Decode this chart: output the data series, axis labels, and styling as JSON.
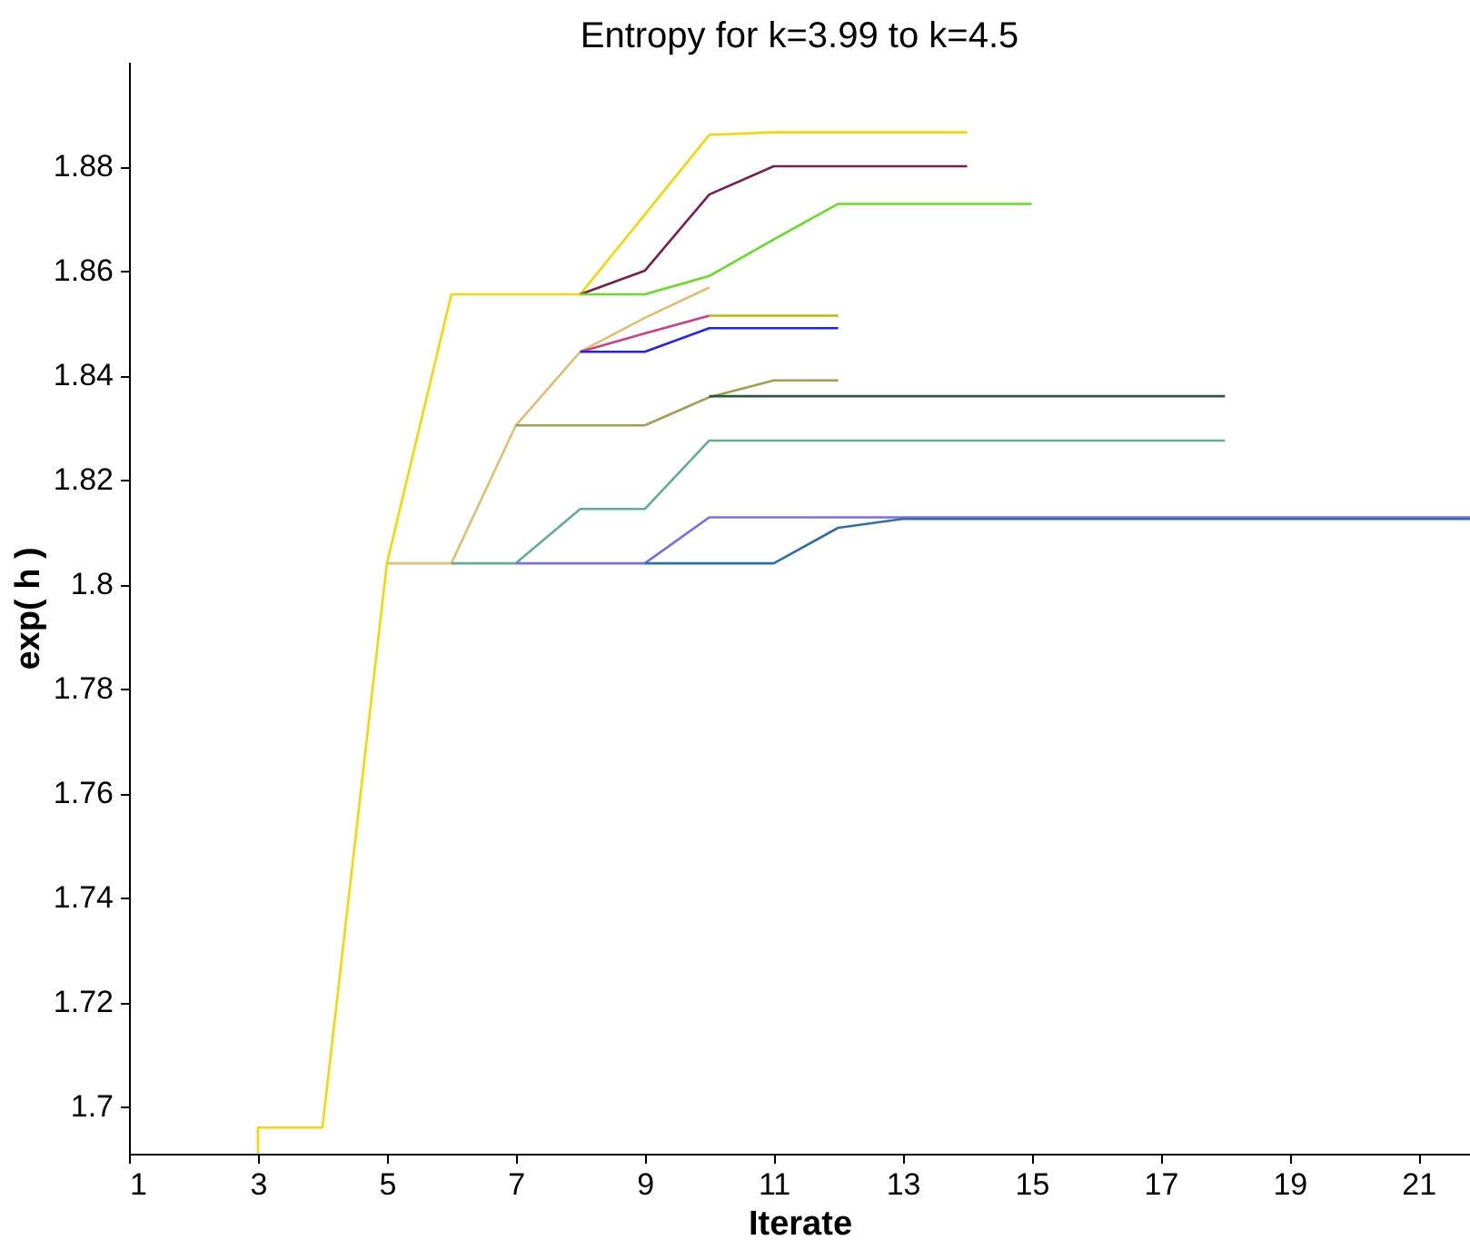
{
  "chart_data": {
    "type": "line",
    "title": "Entropy for k=3.99 to k=4.5",
    "xlabel": "Iterate",
    "ylabel": "exp( h )",
    "xlim": [
      1,
      21.8
    ],
    "ylim": [
      1.691,
      1.9
    ],
    "xticks": [
      1,
      3,
      5,
      7,
      9,
      11,
      13,
      15,
      17,
      19,
      21
    ],
    "yticks": [
      1.7,
      1.72,
      1.74,
      1.76,
      1.78,
      1.8,
      1.82,
      1.84,
      1.86,
      1.88
    ],
    "grid": false,
    "marker": "none",
    "line_style": "solid",
    "series": [
      {
        "color": "#f5d800",
        "x": [
          3,
          3,
          4,
          5,
          6,
          8,
          10,
          11,
          14
        ],
        "values": [
          1.691,
          1.696,
          1.696,
          1.804,
          1.8555,
          1.8555,
          1.886,
          1.8865,
          1.8865
        ]
      },
      {
        "color": "#7a1f4d",
        "x": [
          8,
          9,
          10,
          11,
          14
        ],
        "values": [
          1.8555,
          1.86,
          1.8746,
          1.88,
          1.88
        ]
      },
      {
        "color": "#66dd22",
        "x": [
          8,
          9,
          10,
          11,
          12,
          15
        ],
        "values": [
          1.8555,
          1.8555,
          1.859,
          1.866,
          1.8728,
          1.8728
        ]
      },
      {
        "color": "#e0c070",
        "x": [
          5,
          6,
          7,
          8,
          9,
          10
        ],
        "values": [
          1.804,
          1.804,
          1.8304,
          1.8445,
          1.851,
          1.8568
        ]
      },
      {
        "color": "#d04080",
        "x": [
          8,
          9,
          10
        ],
        "values": [
          1.8445,
          1.848,
          1.8514
        ]
      },
      {
        "color": "#b8b800",
        "x": [
          10,
          12
        ],
        "values": [
          1.8514,
          1.8514
        ]
      },
      {
        "color": "#2020ff",
        "x": [
          8,
          9,
          10,
          12
        ],
        "values": [
          1.8445,
          1.8445,
          1.849,
          1.849
        ]
      },
      {
        "color": "#a0a050",
        "x": [
          7,
          9,
          10,
          11,
          12
        ],
        "values": [
          1.8304,
          1.8304,
          1.8358,
          1.839,
          1.839
        ]
      },
      {
        "color": "#2a5a3a",
        "x": [
          10,
          18
        ],
        "values": [
          1.836,
          1.836
        ]
      },
      {
        "color": "#60b090",
        "x": [
          6,
          7,
          8,
          9,
          10,
          18
        ],
        "values": [
          1.804,
          1.804,
          1.8144,
          1.8144,
          1.8275,
          1.8275
        ]
      },
      {
        "color": "#7a6ee8",
        "x": [
          7,
          9,
          10,
          21.8
        ],
        "values": [
          1.804,
          1.804,
          1.8128,
          1.8128
        ]
      },
      {
        "color": "#2f70a8",
        "x": [
          9,
          11,
          12,
          13,
          21.8
        ],
        "values": [
          1.804,
          1.804,
          1.8108,
          1.8125,
          1.8125
        ]
      }
    ]
  }
}
